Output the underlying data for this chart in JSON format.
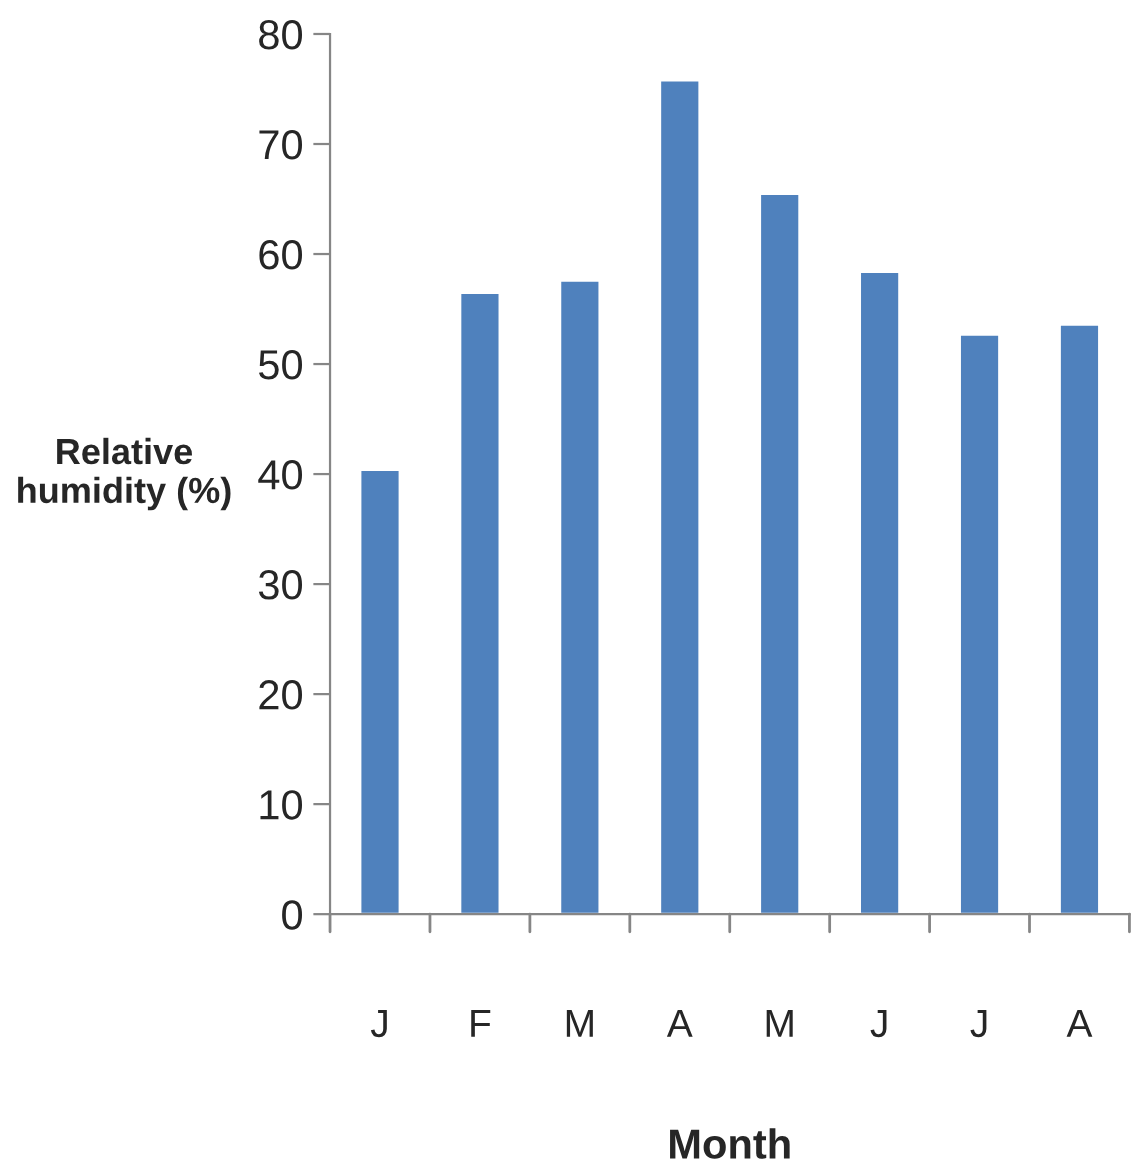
{
  "chart_data": {
    "type": "bar",
    "xlabel": "Month",
    "ylabel": "Relative\nhumidity (%)",
    "categories": [
      "J",
      "F",
      "M",
      "A",
      "M",
      "J",
      "J",
      "A"
    ],
    "values": [
      40.4,
      56.5,
      57.6,
      75.8,
      65.5,
      58.4,
      52.7,
      53.6
    ],
    "color": "#4f81bd",
    "ylim": [
      0,
      80
    ],
    "yticks": [
      0,
      10,
      20,
      30,
      40,
      50,
      60,
      70,
      80
    ],
    "grid": false,
    "legend": false
  }
}
